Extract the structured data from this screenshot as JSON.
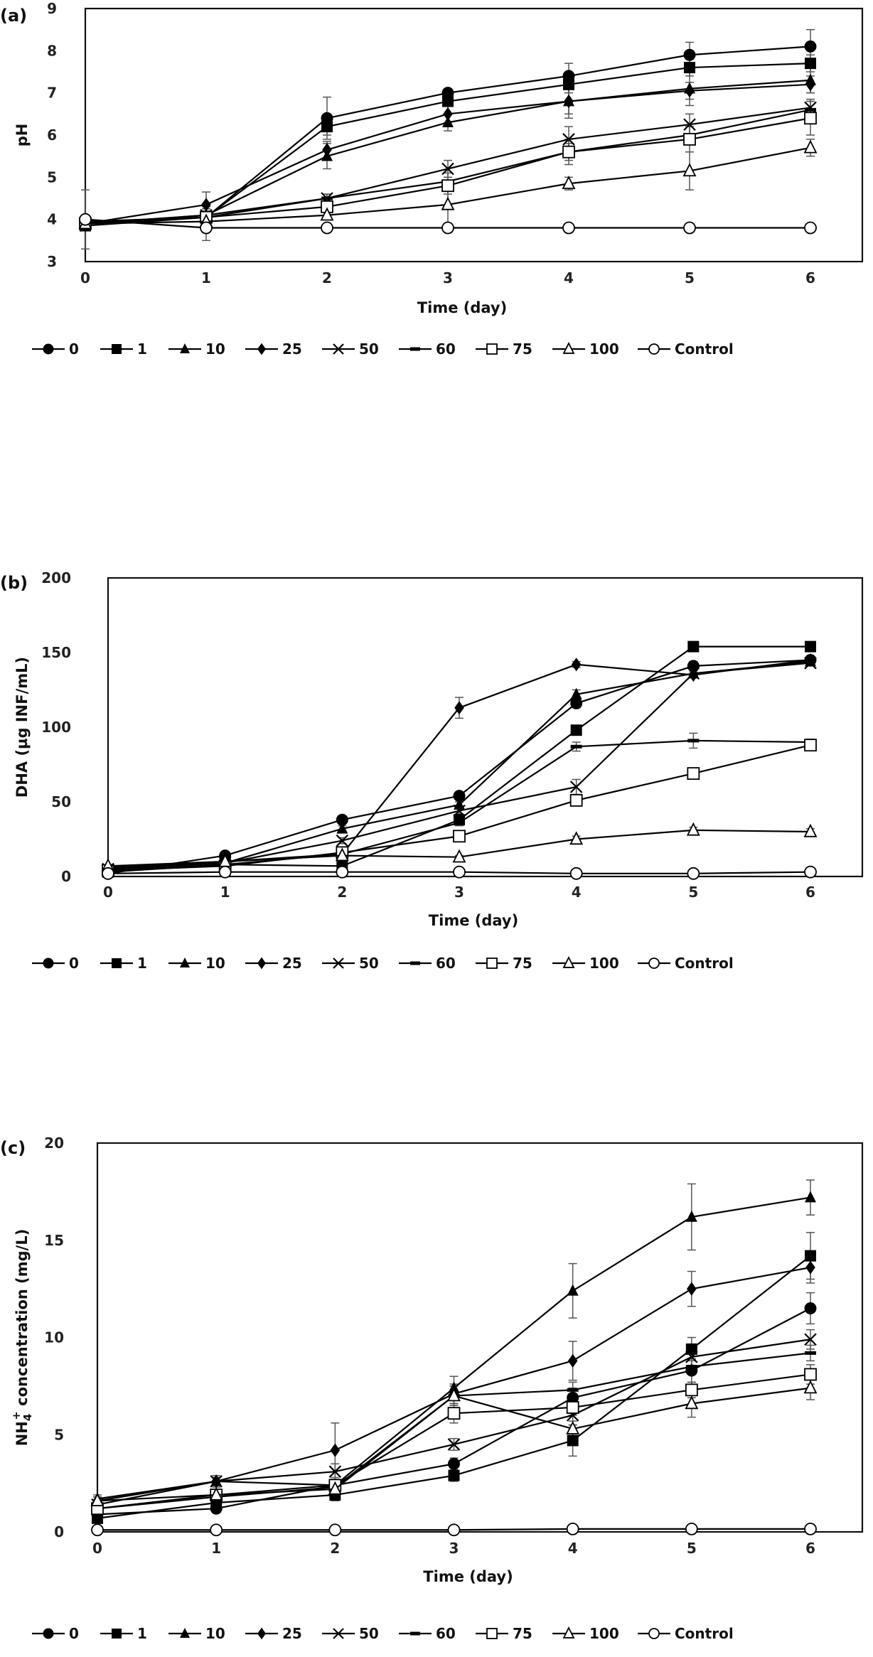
{
  "legend": [
    "0",
    "1",
    "10",
    "25",
    "50",
    "60",
    "75",
    "100",
    "Control"
  ],
  "markers": [
    "filled-circle",
    "filled-square",
    "filled-triangle",
    "filled-diamond",
    "x-cross",
    "dash",
    "open-square",
    "open-triangle",
    "open-circle"
  ],
  "colors": {
    "line": "#000000",
    "error_bar": "#555555",
    "axis": "#111111",
    "background": "#ffffff"
  },
  "chart_data": [
    {
      "panel": "(a)",
      "type": "line",
      "title": "",
      "xlabel": "Time (day)",
      "ylabel": "pH",
      "x": [
        0,
        1,
        2,
        3,
        4,
        5,
        6
      ],
      "xlim": [
        0,
        6.35
      ],
      "ylim": [
        3,
        9
      ],
      "xticks": [
        "0",
        "1",
        "2",
        "3",
        "4",
        "5",
        "6"
      ],
      "yticks": [
        "3",
        "4",
        "5",
        "6",
        "7",
        "8",
        "9"
      ],
      "grid": false,
      "legend_position": "bottom",
      "series": [
        {
          "name": "0",
          "values": [
            3.95,
            4.05,
            6.4,
            7.0,
            7.4,
            7.9,
            8.1
          ],
          "errors": [
            0.1,
            0.2,
            0.5,
            0.1,
            0.3,
            0.3,
            0.4
          ]
        },
        {
          "name": "1",
          "values": [
            3.85,
            4.05,
            6.2,
            6.8,
            7.2,
            7.6,
            7.7
          ],
          "errors": [
            0.1,
            0.2,
            0.2,
            0.1,
            0.2,
            0.2,
            0.2
          ]
        },
        {
          "name": "10",
          "values": [
            3.9,
            4.1,
            5.5,
            6.3,
            6.8,
            7.1,
            7.3
          ],
          "errors": [
            0.1,
            0.2,
            0.3,
            0.2,
            0.4,
            0.4,
            0.3
          ]
        },
        {
          "name": "25",
          "values": [
            3.9,
            4.35,
            5.65,
            6.5,
            6.8,
            7.05,
            7.2
          ],
          "errors": [
            0.1,
            0.3,
            0.2,
            0.2,
            0.3,
            0.2,
            0.2
          ]
        },
        {
          "name": "50",
          "values": [
            3.9,
            4.1,
            4.5,
            5.2,
            5.9,
            6.25,
            6.65
          ],
          "errors": [
            0.1,
            0.1,
            0.1,
            0.2,
            0.3,
            0.25,
            0.2
          ]
        },
        {
          "name": "60",
          "values": [
            3.9,
            4.05,
            4.5,
            4.9,
            5.6,
            6.0,
            6.6
          ],
          "errors": [
            0.1,
            0.1,
            0.1,
            0.2,
            0.2,
            0.2,
            0.2
          ]
        },
        {
          "name": "75",
          "values": [
            3.9,
            4.05,
            4.3,
            4.8,
            5.6,
            5.9,
            6.4
          ],
          "errors": [
            0.1,
            0.1,
            0.2,
            0.2,
            0.3,
            0.3,
            0.4
          ]
        },
        {
          "name": "100",
          "values": [
            3.9,
            3.95,
            4.1,
            4.35,
            4.85,
            5.15,
            5.7
          ],
          "errors": [
            0.1,
            0.1,
            0.1,
            0.45,
            0.15,
            0.45,
            0.2
          ]
        },
        {
          "name": "Control",
          "values": [
            4.0,
            3.8,
            3.8,
            3.8,
            3.8,
            3.8,
            3.8
          ],
          "errors": [
            0.7,
            0.3,
            0.0,
            0.0,
            0.1,
            0.0,
            0.0
          ]
        }
      ]
    },
    {
      "panel": "(b)",
      "type": "line",
      "title": "",
      "xlabel": "Time (day)",
      "ylabel": "DHA (µg INF/mL)",
      "x": [
        0,
        1,
        2,
        3,
        4,
        5,
        6
      ],
      "xlim": [
        0,
        6.35
      ],
      "ylim": [
        0,
        200
      ],
      "xticks": [
        "0",
        "1",
        "2",
        "3",
        "4",
        "5",
        "6"
      ],
      "yticks": [
        "0",
        "50",
        "100",
        "150",
        "200"
      ],
      "grid": false,
      "legend_position": "bottom",
      "series": [
        {
          "name": "0",
          "values": [
            2,
            14,
            38,
            54,
            116,
            141,
            145
          ],
          "errors": [
            1,
            1,
            2,
            2,
            3,
            3,
            2
          ]
        },
        {
          "name": "1",
          "values": [
            3,
            8,
            7,
            38,
            98,
            154,
            154
          ],
          "errors": [
            1,
            1,
            1,
            2,
            2,
            2,
            2
          ]
        },
        {
          "name": "10",
          "values": [
            6,
            9,
            32,
            48,
            122,
            136,
            144
          ],
          "errors": [
            1,
            1,
            2,
            2,
            3,
            3,
            2
          ]
        },
        {
          "name": "25",
          "values": [
            5,
            10,
            15,
            113,
            142,
            135,
            145
          ],
          "errors": [
            1,
            1,
            1,
            7,
            2,
            2,
            2
          ]
        },
        {
          "name": "50",
          "values": [
            5,
            9,
            24,
            44,
            60,
            136,
            143
          ],
          "errors": [
            1,
            1,
            2,
            2,
            5,
            3,
            2
          ]
        },
        {
          "name": "60",
          "values": [
            4,
            8,
            15,
            36,
            87,
            91,
            90
          ],
          "errors": [
            1,
            1,
            1,
            2,
            3,
            5,
            2
          ]
        },
        {
          "name": "75",
          "values": [
            4,
            7,
            16,
            27,
            51,
            69,
            88
          ],
          "errors": [
            1,
            1,
            2,
            2,
            2,
            2,
            3
          ]
        },
        {
          "name": "100",
          "values": [
            7,
            10,
            14,
            13,
            25,
            31,
            30
          ],
          "errors": [
            1,
            1,
            1,
            1,
            2,
            2,
            2
          ]
        },
        {
          "name": "Control",
          "values": [
            2,
            3,
            3,
            3,
            2,
            2,
            3
          ],
          "errors": [
            1,
            1,
            0,
            0,
            0,
            0,
            0
          ]
        }
      ]
    },
    {
      "panel": "(c)",
      "type": "line",
      "title": "",
      "xlabel": "Time (day)",
      "ylabel": "NH4+ concentration (mg/L)",
      "ylabel_parts": {
        "base": "NH",
        "sub": "4",
        "sup": "+",
        "rest": " concentration (mg/L)"
      },
      "x": [
        0,
        1,
        2,
        3,
        4,
        5,
        6
      ],
      "xlim": [
        0,
        6.35
      ],
      "ylim": [
        0,
        20
      ],
      "xticks": [
        "0",
        "1",
        "2",
        "3",
        "4",
        "5",
        "6"
      ],
      "yticks": [
        "0",
        "5",
        "10",
        "15",
        "20"
      ],
      "grid": false,
      "legend_position": "bottom",
      "series": [
        {
          "name": "0",
          "values": [
            0.9,
            1.2,
            2.4,
            3.5,
            6.9,
            8.3,
            11.5
          ],
          "errors": [
            0.2,
            0.2,
            0.3,
            0.3,
            0.5,
            0.6,
            0.8
          ]
        },
        {
          "name": "1",
          "values": [
            0.7,
            1.5,
            1.9,
            2.9,
            4.7,
            9.4,
            14.2
          ],
          "errors": [
            0.2,
            0.2,
            0.3,
            0.3,
            0.8,
            0.6,
            1.2
          ]
        },
        {
          "name": "10",
          "values": [
            1.7,
            2.6,
            2.4,
            7.4,
            12.4,
            16.2,
            17.2
          ],
          "errors": [
            0.2,
            0.2,
            0.3,
            0.6,
            1.4,
            1.7,
            0.9
          ]
        },
        {
          "name": "25",
          "values": [
            1.6,
            2.6,
            4.2,
            7.1,
            8.8,
            12.5,
            13.6
          ],
          "errors": [
            0.2,
            0.3,
            1.4,
            0.5,
            1.0,
            0.9,
            0.8
          ]
        },
        {
          "name": "50",
          "values": [
            1.4,
            2.6,
            3.1,
            4.5,
            6.0,
            9.0,
            9.9
          ],
          "errors": [
            0.2,
            0.2,
            0.4,
            0.3,
            0.5,
            0.5,
            0.5
          ]
        },
        {
          "name": "60",
          "values": [
            1.2,
            1.8,
            2.3,
            7.0,
            7.3,
            8.5,
            9.2
          ],
          "errors": [
            0.2,
            0.2,
            0.3,
            0.5,
            0.4,
            0.4,
            0.4
          ]
        },
        {
          "name": "75",
          "values": [
            1.2,
            1.9,
            2.4,
            6.1,
            6.4,
            7.3,
            8.1
          ],
          "errors": [
            0.2,
            0.2,
            0.3,
            0.5,
            0.4,
            0.4,
            0.5
          ]
        },
        {
          "name": "100",
          "values": [
            1.6,
            1.9,
            2.2,
            7.0,
            5.3,
            6.6,
            7.4
          ],
          "errors": [
            0.2,
            0.2,
            0.3,
            0.5,
            0.4,
            0.7,
            0.6
          ]
        },
        {
          "name": "Control",
          "values": [
            0.1,
            0.1,
            0.1,
            0.1,
            0.15,
            0.15,
            0.15
          ],
          "errors": [
            0,
            0,
            0,
            0,
            0,
            0,
            0
          ]
        }
      ]
    }
  ]
}
